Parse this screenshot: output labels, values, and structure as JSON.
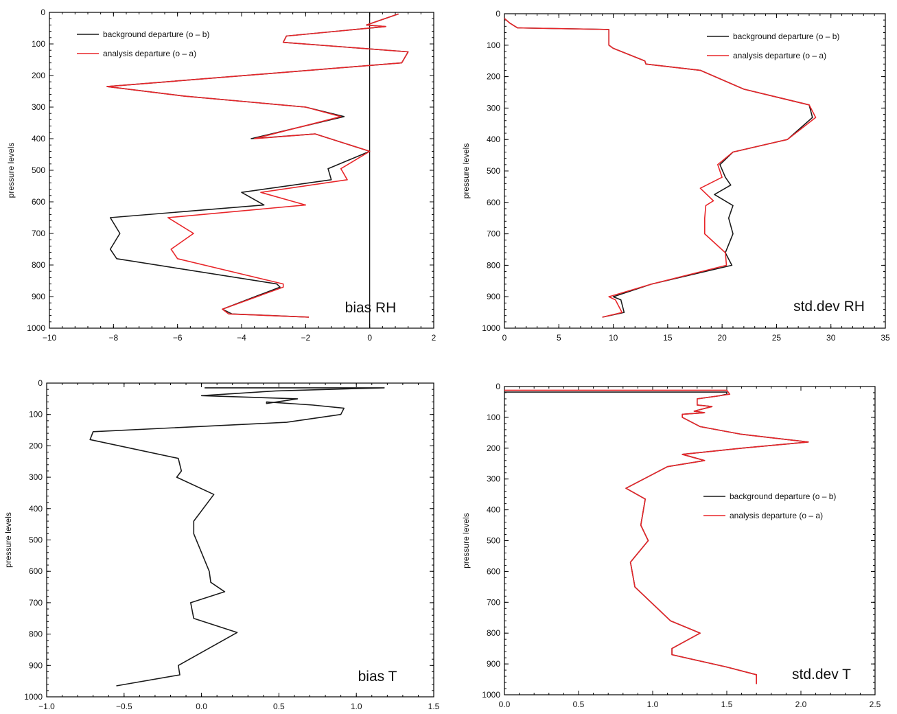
{
  "colors": {
    "background_departure": "#1a1a1a",
    "analysis_departure": "#e8262a"
  },
  "chart_data": [
    {
      "type": "line",
      "panel_label": "bias   RH",
      "ylabel": "pressure levels",
      "xlim": [
        -10,
        2
      ],
      "ylim": [
        1000,
        0
      ],
      "xticks": [
        "−10",
        "−8",
        "−6",
        "−4",
        "−2",
        "0",
        "2"
      ],
      "xtick_values": [
        -10,
        -8,
        -6,
        -4,
        -2,
        0,
        2
      ],
      "yticks": [
        "0",
        "100",
        "200",
        "300",
        "400",
        "500",
        "600",
        "700",
        "800",
        "900",
        "1000"
      ],
      "zero_line": true,
      "legend": {
        "position": "top-left",
        "entries": [
          "background departure (o – b)",
          "analysis departure (o – a)"
        ]
      },
      "series": [
        {
          "name": "background departure (o – b)",
          "color": "#1a1a1a",
          "x": [
            0.9,
            -0.1,
            0.5,
            -2.6,
            -2.7,
            1.2,
            1.0,
            -8.2,
            -5.8,
            -2.0,
            -0.8,
            -3.7,
            -1.7,
            0.0,
            -1.3,
            -1.2,
            -4.0,
            -3.3,
            -8.1,
            -7.8,
            -8.1,
            -7.9,
            -2.9,
            -2.8,
            -4.6,
            -4.3,
            -1.9
          ],
          "y": [
            5,
            40,
            45,
            75,
            95,
            125,
            160,
            235,
            265,
            300,
            330,
            400,
            385,
            440,
            495,
            530,
            570,
            610,
            650,
            700,
            750,
            780,
            860,
            870,
            940,
            955,
            965
          ]
        },
        {
          "name": "analysis departure (o – a)",
          "color": "#e8262a",
          "x": [
            0.9,
            -0.1,
            0.5,
            -2.6,
            -2.7,
            1.2,
            1.0,
            -8.2,
            -5.8,
            -2.0,
            -0.9,
            -3.6,
            -1.7,
            0.0,
            -0.9,
            -0.7,
            -3.4,
            -2.0,
            -6.3,
            -5.5,
            -6.2,
            -6.0,
            -2.7,
            -2.7,
            -4.6,
            -4.4,
            -1.9
          ],
          "y": [
            5,
            40,
            45,
            75,
            95,
            125,
            160,
            235,
            265,
            300,
            330,
            400,
            385,
            440,
            495,
            530,
            570,
            610,
            650,
            700,
            750,
            780,
            860,
            870,
            940,
            955,
            965
          ]
        }
      ]
    },
    {
      "type": "line",
      "panel_label": "std.dev   RH",
      "ylabel": "pressure levels",
      "xlim": [
        0,
        35
      ],
      "ylim": [
        1000,
        0
      ],
      "xticks": [
        "0",
        "5",
        "10",
        "15",
        "20",
        "25",
        "30",
        "35"
      ],
      "xtick_values": [
        0,
        5,
        10,
        15,
        20,
        25,
        30,
        35
      ],
      "yticks": [
        "0",
        "100",
        "200",
        "300",
        "400",
        "500",
        "600",
        "700",
        "800",
        "900",
        "1000"
      ],
      "zero_line": false,
      "legend": {
        "position": "top-right",
        "entries": [
          "background departure (o – b)",
          "analysis departure (o – a)"
        ]
      },
      "series": [
        {
          "name": "background departure (o – b)",
          "color": "#1a1a1a",
          "x": [
            0.0,
            0.5,
            1.2,
            9.6,
            9.6,
            9.6,
            10.0,
            12.9,
            13.0,
            18.0,
            22.0,
            28.0,
            28.3,
            26.0,
            21.0,
            19.8,
            20.3,
            20.8,
            19.3,
            21.0,
            20.6,
            21.0,
            20.3,
            20.9,
            13.5,
            10.0,
            10.7,
            11.0,
            9.0
          ],
          "y": [
            15,
            30,
            45,
            50,
            80,
            100,
            110,
            150,
            160,
            180,
            240,
            290,
            330,
            400,
            440,
            480,
            520,
            545,
            575,
            610,
            650,
            700,
            760,
            800,
            860,
            900,
            910,
            950,
            965
          ]
        },
        {
          "name": "analysis departure (o – a)",
          "color": "#e8262a",
          "x": [
            0.0,
            0.5,
            1.2,
            9.6,
            9.6,
            9.6,
            10.0,
            12.9,
            13.0,
            18.0,
            22.0,
            28.0,
            28.6,
            26.0,
            21.0,
            19.6,
            20.0,
            18.0,
            19.2,
            18.5,
            18.4,
            18.4,
            20.3,
            20.4,
            13.5,
            9.6,
            10.2,
            10.8,
            9.0
          ],
          "y": [
            15,
            30,
            45,
            50,
            80,
            100,
            110,
            150,
            160,
            180,
            240,
            290,
            330,
            400,
            440,
            480,
            520,
            555,
            595,
            610,
            650,
            700,
            760,
            800,
            860,
            900,
            910,
            950,
            965
          ]
        }
      ]
    },
    {
      "type": "line",
      "panel_label": "bias   T",
      "ylabel": "pressure levels",
      "xlim": [
        -1.0,
        1.5
      ],
      "ylim": [
        1000,
        0
      ],
      "xticks": [
        "−1.0",
        "−0.5",
        "0.0",
        "0.5",
        "1.0",
        "1.5"
      ],
      "xtick_values": [
        -1.0,
        -0.5,
        0.0,
        0.5,
        1.0,
        1.5
      ],
      "yticks": [
        "0",
        "100",
        "200",
        "300",
        "400",
        "500",
        "600",
        "700",
        "800",
        "900",
        "1000"
      ],
      "zero_line": false,
      "legend": null,
      "series": [
        {
          "name": "",
          "color": "#1a1a1a",
          "x": [
            0.02,
            0.02,
            1.18,
            0.48,
            0.0,
            0.62,
            0.42,
            0.42,
            0.72,
            0.92,
            0.9,
            0.55,
            -0.7,
            -0.72,
            -0.15,
            -0.13,
            -0.16,
            0.08,
            -0.05,
            -0.05,
            0.05,
            0.06,
            0.15,
            -0.07,
            -0.05,
            0.23,
            -0.15,
            -0.14,
            -0.55
          ],
          "y": [
            15,
            15,
            15,
            25,
            40,
            50,
            65,
            60,
            70,
            80,
            100,
            125,
            155,
            180,
            240,
            280,
            300,
            355,
            440,
            480,
            600,
            635,
            665,
            700,
            750,
            795,
            900,
            930,
            965
          ]
        }
      ]
    },
    {
      "type": "line",
      "panel_label": "std.dev   T",
      "ylabel": "pressure levels",
      "xlim": [
        0.0,
        2.5
      ],
      "ylim": [
        1000,
        0
      ],
      "xticks": [
        "0.0",
        "0.5",
        "1.0",
        "1.5",
        "2.0",
        "2.5"
      ],
      "xtick_values": [
        0.0,
        0.5,
        1.0,
        1.5,
        2.0,
        2.5
      ],
      "yticks": [
        "0",
        "100",
        "200",
        "300",
        "400",
        "500",
        "600",
        "700",
        "800",
        "900",
        "1000"
      ],
      "zero_line": false,
      "legend": {
        "position": "center-right",
        "entries": [
          "background departure (o – b)",
          "analysis departure (o – a)"
        ]
      },
      "series": [
        {
          "name": "background departure (o – b)",
          "color": "#1a1a1a",
          "x": [
            0.0,
            1.5,
            1.5,
            1.45,
            1.3,
            1.3,
            1.4,
            1.28,
            1.35,
            1.2,
            1.2,
            1.32,
            1.6,
            2.05,
            1.6,
            1.2,
            1.35,
            1.1,
            0.82,
            0.95,
            0.92,
            0.97,
            0.85,
            0.88,
            1.12,
            1.32,
            1.13,
            1.13,
            1.5,
            1.7,
            1.7
          ],
          "y": [
            18,
            18,
            25,
            30,
            40,
            60,
            65,
            80,
            85,
            90,
            100,
            130,
            155,
            180,
            200,
            220,
            240,
            260,
            330,
            365,
            450,
            500,
            570,
            650,
            760,
            800,
            850,
            870,
            910,
            935,
            965
          ]
        },
        {
          "name": "analysis departure (o – a)",
          "color": "#e8262a",
          "x": [
            0.0,
            1.5,
            1.52,
            1.45,
            1.3,
            1.3,
            1.4,
            1.28,
            1.35,
            1.2,
            1.2,
            1.32,
            1.6,
            2.05,
            1.6,
            1.2,
            1.35,
            1.1,
            0.82,
            0.95,
            0.92,
            0.97,
            0.85,
            0.88,
            1.12,
            1.32,
            1.13,
            1.13,
            1.5,
            1.7,
            1.7
          ],
          "y": [
            12,
            12,
            25,
            30,
            40,
            60,
            65,
            80,
            85,
            90,
            100,
            130,
            155,
            180,
            200,
            220,
            240,
            260,
            330,
            365,
            450,
            500,
            570,
            650,
            760,
            800,
            850,
            870,
            910,
            935,
            965
          ]
        }
      ]
    }
  ]
}
